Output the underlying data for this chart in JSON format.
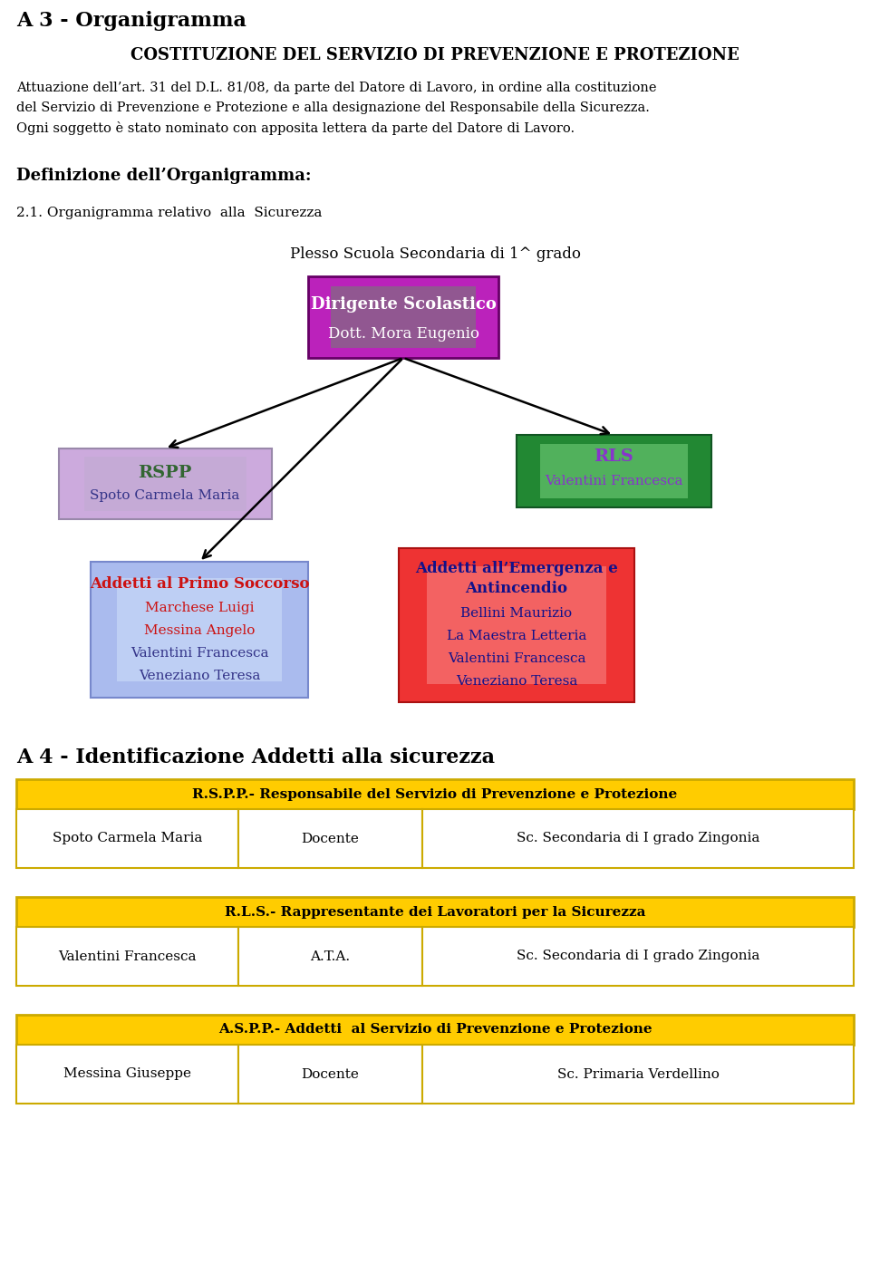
{
  "title_h1": "A 3 - Organigramma",
  "subtitle": "COSTITUZIONE DEL SERVIZIO DI PREVENZIONE E PROTEZIONE",
  "paragraph_lines": [
    "Attuazione dell’art. 31 del D.L. 81/08, da parte del Datore di Lavoro, in ordine alla costituzione",
    "del Servizio di Prevenzione e Protezione e alla designazione del Responsabile della Sicurezza.",
    "Ogni soggetto è stato nominato con apposita lettera da parte del Datore di Lavoro."
  ],
  "def_title": "Definizione dell’Organigramma:",
  "def_sub": "2.1. Organigramma relativo  alla  Sicurezza",
  "plesso_label": "Plesso Scuola Secondaria di 1^ grado",
  "box_dirigente_title": "Dirigente Scolastico",
  "box_dirigente_name": "Dott. Mora Eugenio",
  "box_rspp_title": "RSPP",
  "box_rspp_name": "Spoto Carmela Maria",
  "box_rls_title": "RLS",
  "box_rls_name": "Valentini Francesca",
  "box_primo_title": "Addetti al Primo Soccorso",
  "box_primo_names": [
    "Marchese Luigi",
    "Messina Angelo",
    "Valentini Francesca",
    "Veneziano Teresa"
  ],
  "box_emergenza_title_line1": "Addetti all’Emergenza e",
  "box_emergenza_title_line2": "Antincendio",
  "box_emergenza_names": [
    "Bellini Maurizio",
    "La Maestra Letteria",
    "Valentini Francesca",
    "Veneziano Teresa"
  ],
  "section_a4": "A 4 - Identificazione Addetti alla sicurezza",
  "table1_header": "R.S.P.P.- Responsabile del Servizio di Prevenzione e Protezione",
  "table1_row": [
    "Spoto Carmela Maria",
    "Docente",
    "Sc. Secondaria di I grado Zingonia"
  ],
  "table2_header": "R.L.S.- Rappresentante dei Lavoratori per la Sicurezza",
  "table2_row": [
    "Valentini Francesca",
    "A.T.A.",
    "Sc. Secondaria di I grado Zingonia"
  ],
  "table3_header": "A.S.P.P.- Addetti  al Servizio di Prevenzione e Protezione",
  "table3_row": [
    "Messina Giuseppe",
    "Docente",
    "Sc. Primaria Verdellino"
  ],
  "color_dirigente": "#bb22bb",
  "color_dirigente_inner": "#44bb44",
  "color_rspp_bg": "#ccaadd",
  "color_rls_bg": "#228833",
  "color_rls_inner": "#aaffaa",
  "color_primo_bg": "#aabbee",
  "color_primo_inner": "#ddeeff",
  "color_emergenza_bg": "#ee3333",
  "color_emergenza_inner": "#ffbbbb",
  "color_table_header": "#ffcc00",
  "color_table_border": "#ccaa00",
  "bg_color": "#ffffff"
}
